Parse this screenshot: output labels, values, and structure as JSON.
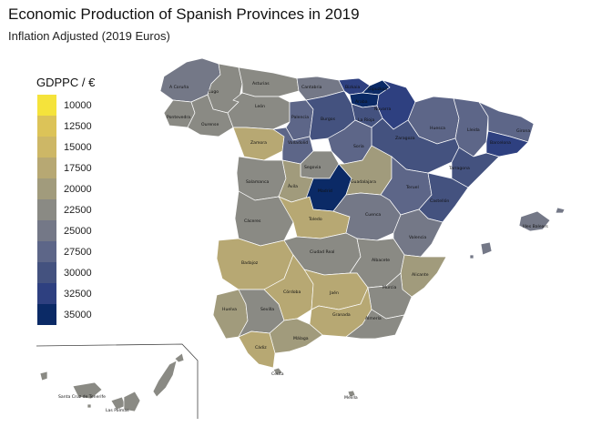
{
  "title": "Economic Production of Spanish Provinces in 2019",
  "subtitle": "Inflation Adjusted (2019 Euros)",
  "legend": {
    "title": "GDPPC / €",
    "items": [
      {
        "label": "10000",
        "color": "#f5e33b"
      },
      {
        "label": "12500",
        "color": "#dcc358"
      },
      {
        "label": "15000",
        "color": "#cdb766"
      },
      {
        "label": "17500",
        "color": "#b7a873"
      },
      {
        "label": "20000",
        "color": "#a19b7c"
      },
      {
        "label": "22500",
        "color": "#8a8a84"
      },
      {
        "label": "25000",
        "color": "#747887"
      },
      {
        "label": "27500",
        "color": "#5d6688"
      },
      {
        "label": "30000",
        "color": "#44527f"
      },
      {
        "label": "32500",
        "color": "#2e4080"
      },
      {
        "label": "35000",
        "color": "#0b2a66"
      }
    ]
  },
  "provinces": [
    {
      "id": "a-coruna",
      "label": "A Coruña",
      "color": "#747887"
    },
    {
      "id": "lugo",
      "label": "Lugo",
      "color": "#8a8a84"
    },
    {
      "id": "asturias",
      "label": "Asturias",
      "color": "#8a8a84"
    },
    {
      "id": "cantabria",
      "label": "Cantabria",
      "color": "#747887"
    },
    {
      "id": "bizkaia",
      "label": "Bizkaia",
      "color": "#2e4080"
    },
    {
      "id": "gipuzkoa",
      "label": "Gipuzkoa",
      "color": "#0b2a66"
    },
    {
      "id": "araba",
      "label": "Araba",
      "color": "#0b2a66"
    },
    {
      "id": "navarra",
      "label": "Navarra",
      "color": "#2e4080"
    },
    {
      "id": "huesca",
      "label": "Huesca",
      "color": "#5d6688"
    },
    {
      "id": "lleida",
      "label": "Lleida",
      "color": "#5d6688"
    },
    {
      "id": "girona",
      "label": "Girona",
      "color": "#5d6688"
    },
    {
      "id": "barcelona",
      "label": "Barcelona",
      "color": "#2e4080"
    },
    {
      "id": "pontevedra",
      "label": "Pontevedra",
      "color": "#8a8a84"
    },
    {
      "id": "ourense",
      "label": "Ourense",
      "color": "#8a8a84"
    },
    {
      "id": "leon",
      "label": "León",
      "color": "#8a8a84"
    },
    {
      "id": "palencia",
      "label": "Palencia",
      "color": "#5d6688"
    },
    {
      "id": "burgos",
      "label": "Burgos",
      "color": "#44527f"
    },
    {
      "id": "la-rioja",
      "label": "La Rioja",
      "color": "#44527f"
    },
    {
      "id": "zaragoza",
      "label": "Zaragoza",
      "color": "#44527f"
    },
    {
      "id": "tarragona",
      "label": "Tarragona",
      "color": "#44527f"
    },
    {
      "id": "zamora",
      "label": "Zamora",
      "color": "#b7a873"
    },
    {
      "id": "valladolid",
      "label": "Valladolid",
      "color": "#5d6688"
    },
    {
      "id": "soria",
      "label": "Soria",
      "color": "#5d6688"
    },
    {
      "id": "salamanca",
      "label": "Salamanca",
      "color": "#8a8a84"
    },
    {
      "id": "segovia",
      "label": "Segovia",
      "color": "#8a8a84"
    },
    {
      "id": "avila",
      "label": "Ávila",
      "color": "#a19b7c"
    },
    {
      "id": "madrid",
      "label": "Madrid",
      "color": "#0b2a66"
    },
    {
      "id": "guadalajara",
      "label": "Guadalajara",
      "color": "#a19b7c"
    },
    {
      "id": "teruel",
      "label": "Teruel",
      "color": "#5d6688"
    },
    {
      "id": "castellon",
      "label": "Castellón",
      "color": "#44527f"
    },
    {
      "id": "caceres",
      "label": "Cáceres",
      "color": "#8a8a84"
    },
    {
      "id": "toledo",
      "label": "Toledo",
      "color": "#b7a873"
    },
    {
      "id": "cuenca",
      "label": "Cuenca",
      "color": "#747887"
    },
    {
      "id": "valencia",
      "label": "Valencia",
      "color": "#747887"
    },
    {
      "id": "badajoz",
      "label": "Badajoz",
      "color": "#b7a873"
    },
    {
      "id": "ciudad-real",
      "label": "Ciudad Real",
      "color": "#8a8a84"
    },
    {
      "id": "albacete",
      "label": "Albacete",
      "color": "#8a8a84"
    },
    {
      "id": "alicante",
      "label": "Alicante",
      "color": "#a19b7c"
    },
    {
      "id": "huelva",
      "label": "Huelva",
      "color": "#a19b7c"
    },
    {
      "id": "sevilla",
      "label": "Sevilla",
      "color": "#8a8a84"
    },
    {
      "id": "cordoba",
      "label": "Córdoba",
      "color": "#b7a873"
    },
    {
      "id": "jaen",
      "label": "Jaén",
      "color": "#b7a873"
    },
    {
      "id": "granada",
      "label": "Granada",
      "color": "#b7a873"
    },
    {
      "id": "murcia",
      "label": "Murcia",
      "color": "#8a8a84"
    },
    {
      "id": "almeria",
      "label": "Almería",
      "color": "#8a8a84"
    },
    {
      "id": "malaga",
      "label": "Málaga",
      "color": "#a19b7c"
    },
    {
      "id": "cadiz",
      "label": "Cádiz",
      "color": "#b7a873"
    },
    {
      "id": "ceuta",
      "label": "Ceuta",
      "color": "#8a8a84"
    },
    {
      "id": "melilla",
      "label": "Melilla",
      "color": "#8a8a84"
    },
    {
      "id": "illes-balears",
      "label": "Illes Balears",
      "color": "#747887"
    },
    {
      "id": "las-palmas",
      "label": "Las Palmas",
      "color": "#8a8a84"
    },
    {
      "id": "santa-cruz",
      "label": "Santa Cruz de Tenerife",
      "color": "#8a8a84"
    }
  ]
}
